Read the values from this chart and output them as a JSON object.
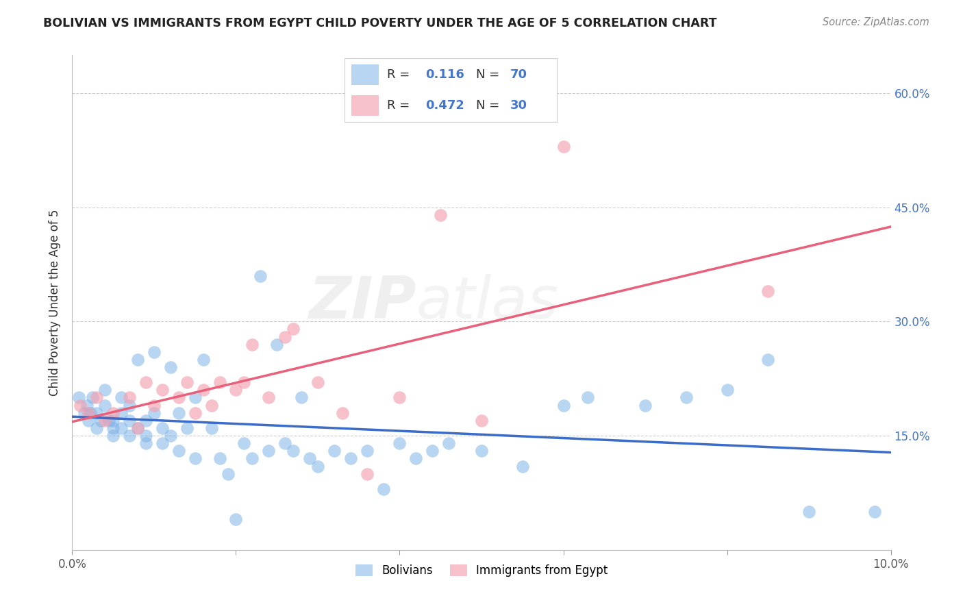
{
  "title": "BOLIVIAN VS IMMIGRANTS FROM EGYPT CHILD POVERTY UNDER THE AGE OF 5 CORRELATION CHART",
  "source": "Source: ZipAtlas.com",
  "ylabel": "Child Poverty Under the Age of 5",
  "x_min": 0.0,
  "x_max": 0.1,
  "y_min": 0.0,
  "y_max": 0.65,
  "y_ticks": [
    0.0,
    0.15,
    0.3,
    0.45,
    0.6
  ],
  "y_tick_labels": [
    "",
    "15.0%",
    "30.0%",
    "45.0%",
    "60.0%"
  ],
  "bolivians_R": 0.116,
  "bolivians_N": 70,
  "egypt_R": 0.472,
  "egypt_N": 30,
  "blue_color": "#7EB3E8",
  "pink_color": "#F4A0B0",
  "blue_line_color": "#3A6CC8",
  "pink_line_color": "#E8607A",
  "legend_label_1": "Bolivians",
  "legend_label_2": "Immigrants from Egypt",
  "watermark_zip": "ZIP",
  "watermark_atlas": "atlas",
  "bx": [
    0.0008,
    0.0015,
    0.0018,
    0.002,
    0.0022,
    0.0025,
    0.003,
    0.003,
    0.0035,
    0.004,
    0.004,
    0.0045,
    0.005,
    0.005,
    0.005,
    0.006,
    0.006,
    0.006,
    0.007,
    0.007,
    0.007,
    0.008,
    0.008,
    0.009,
    0.009,
    0.009,
    0.01,
    0.01,
    0.011,
    0.011,
    0.012,
    0.012,
    0.013,
    0.013,
    0.014,
    0.015,
    0.015,
    0.016,
    0.017,
    0.018,
    0.019,
    0.02,
    0.021,
    0.022,
    0.023,
    0.024,
    0.025,
    0.026,
    0.027,
    0.028,
    0.029,
    0.03,
    0.032,
    0.034,
    0.036,
    0.038,
    0.04,
    0.042,
    0.044,
    0.046,
    0.05,
    0.055,
    0.06,
    0.063,
    0.07,
    0.075,
    0.08,
    0.085,
    0.09,
    0.098
  ],
  "by": [
    0.2,
    0.18,
    0.19,
    0.17,
    0.18,
    0.2,
    0.16,
    0.18,
    0.17,
    0.19,
    0.21,
    0.17,
    0.15,
    0.17,
    0.16,
    0.18,
    0.16,
    0.2,
    0.19,
    0.17,
    0.15,
    0.25,
    0.16,
    0.17,
    0.15,
    0.14,
    0.26,
    0.18,
    0.16,
    0.14,
    0.24,
    0.15,
    0.18,
    0.13,
    0.16,
    0.2,
    0.12,
    0.25,
    0.16,
    0.12,
    0.1,
    0.04,
    0.14,
    0.12,
    0.36,
    0.13,
    0.27,
    0.14,
    0.13,
    0.2,
    0.12,
    0.11,
    0.13,
    0.12,
    0.13,
    0.08,
    0.14,
    0.12,
    0.13,
    0.14,
    0.13,
    0.11,
    0.19,
    0.2,
    0.19,
    0.2,
    0.21,
    0.25,
    0.05,
    0.05
  ],
  "ex": [
    0.001,
    0.002,
    0.003,
    0.004,
    0.005,
    0.007,
    0.008,
    0.009,
    0.01,
    0.011,
    0.013,
    0.014,
    0.015,
    0.016,
    0.017,
    0.018,
    0.02,
    0.021,
    0.022,
    0.024,
    0.026,
    0.027,
    0.03,
    0.033,
    0.036,
    0.04,
    0.045,
    0.05,
    0.06,
    0.085
  ],
  "ey": [
    0.19,
    0.18,
    0.2,
    0.17,
    0.18,
    0.2,
    0.16,
    0.22,
    0.19,
    0.21,
    0.2,
    0.22,
    0.18,
    0.21,
    0.19,
    0.22,
    0.21,
    0.22,
    0.27,
    0.2,
    0.28,
    0.29,
    0.22,
    0.18,
    0.1,
    0.2,
    0.44,
    0.17,
    0.53,
    0.34
  ],
  "blue_intercept": 0.14,
  "blue_slope": 0.6,
  "pink_intercept": 0.115,
  "pink_slope": 2.4
}
